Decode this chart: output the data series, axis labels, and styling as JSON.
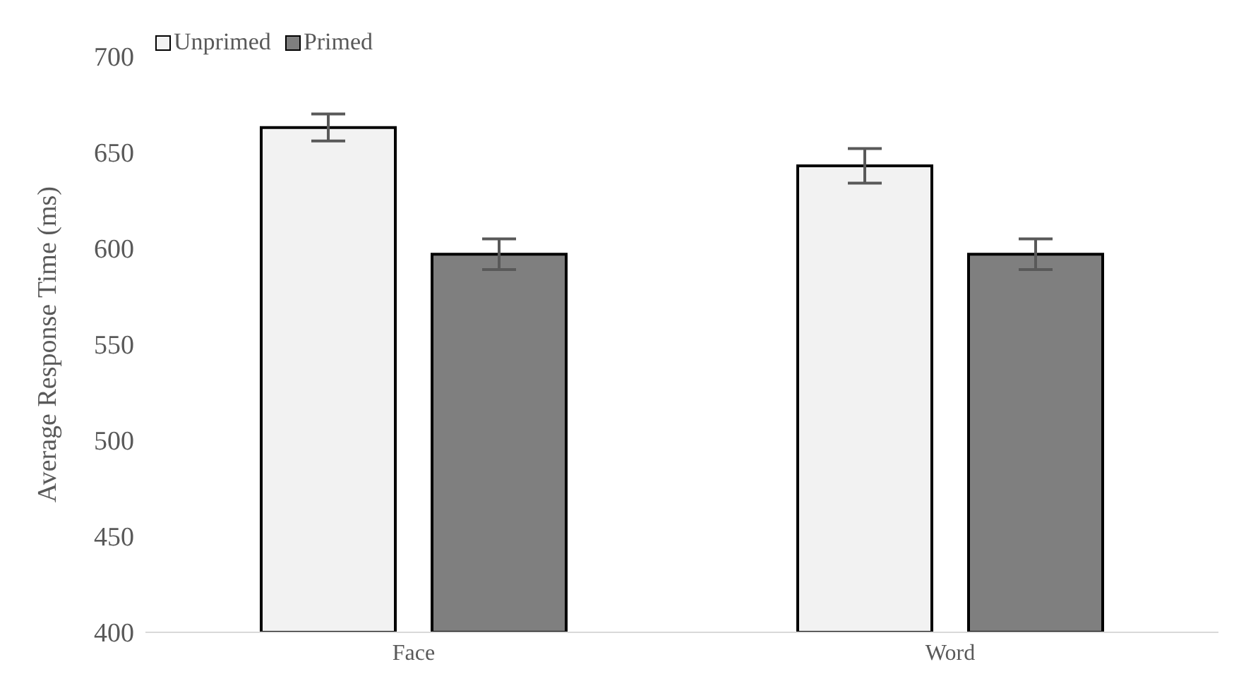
{
  "chart_data": {
    "type": "bar",
    "ylabel": "Average Response Time (ms)",
    "categories": [
      "Face",
      "Word"
    ],
    "series": [
      {
        "name": "Unprimed",
        "color": "#f2f2f2",
        "values": [
          663,
          643
        ],
        "errors": [
          7,
          9
        ]
      },
      {
        "name": "Primed",
        "color": "#7f7f7f",
        "values": [
          597,
          597
        ],
        "errors": [
          8,
          8
        ]
      }
    ],
    "ylim": [
      400,
      700
    ],
    "yticks": [
      400,
      450,
      500,
      550,
      600,
      650,
      700
    ],
    "grid": false,
    "legend": "top left"
  }
}
